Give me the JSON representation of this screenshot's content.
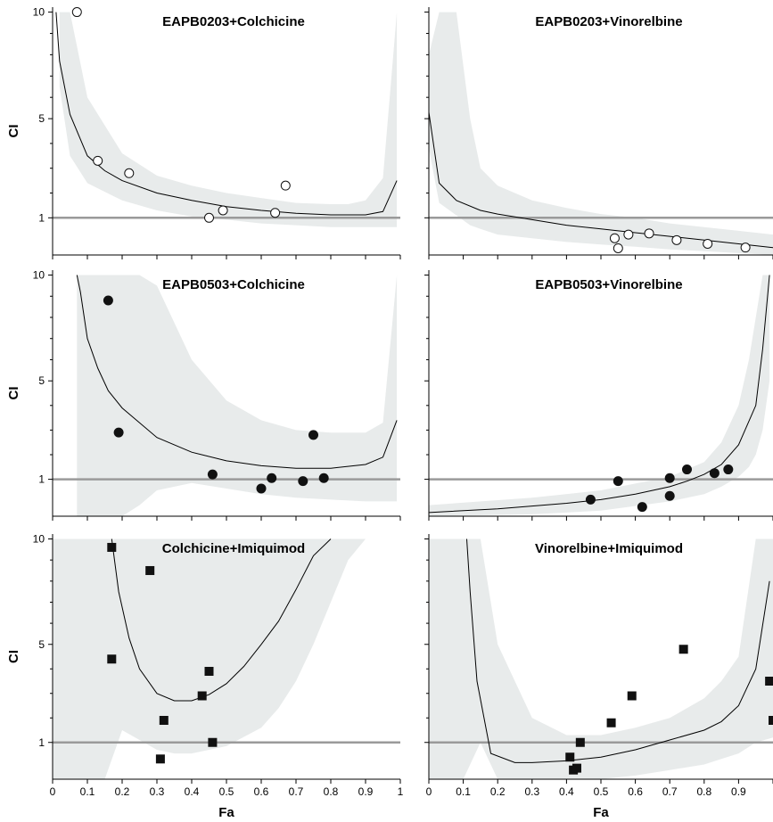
{
  "figure": {
    "x_axis_label": "Fa",
    "y_axis_label": "CI"
  },
  "chart_data": [
    {
      "type": "scatter",
      "title": "EAPB0203+Colchicine",
      "xlabel": "",
      "ylabel": "CI",
      "xlim": [
        0,
        1
      ],
      "ylim": [
        0,
        10
      ],
      "y_ticks": [
        "1",
        "5",
        "10"
      ],
      "x_ticks": [],
      "marker": "open-circle",
      "reference_line": 1,
      "points": [
        {
          "x": 0.07,
          "y": 10.0
        },
        {
          "x": 0.13,
          "y": 3.3
        },
        {
          "x": 0.22,
          "y": 2.8
        },
        {
          "x": 0.45,
          "y": 1.0
        },
        {
          "x": 0.49,
          "y": 1.3
        },
        {
          "x": 0.64,
          "y": 1.2
        },
        {
          "x": 0.67,
          "y": 2.3
        }
      ],
      "curve": {
        "x": [
          0.01,
          0.02,
          0.05,
          0.1,
          0.15,
          0.2,
          0.3,
          0.4,
          0.5,
          0.6,
          0.7,
          0.8,
          0.9,
          0.95,
          0.99
        ],
        "y": [
          10,
          7.7,
          5.2,
          3.5,
          2.9,
          2.5,
          2.0,
          1.7,
          1.45,
          1.3,
          1.18,
          1.12,
          1.12,
          1.25,
          2.5
        ]
      },
      "band": {
        "x": [
          0.02,
          0.05,
          0.1,
          0.2,
          0.3,
          0.4,
          0.5,
          0.6,
          0.7,
          0.8,
          0.85,
          0.9,
          0.95,
          0.99
        ],
        "upper": [
          10,
          10,
          6,
          3.6,
          2.7,
          2.3,
          2.0,
          1.8,
          1.6,
          1.55,
          1.55,
          1.7,
          2.6,
          10
        ],
        "lower": [
          6.5,
          3.5,
          2.4,
          1.7,
          1.3,
          1.05,
          0.95,
          0.85,
          0.8,
          0.75,
          0.75,
          0.75,
          0.75,
          0.75
        ]
      }
    },
    {
      "type": "scatter",
      "title": "EAPB0203+Vinorelbine",
      "xlabel": "",
      "ylabel": "",
      "xlim": [
        0,
        1
      ],
      "ylim": [
        0,
        10
      ],
      "y_ticks": [],
      "x_ticks": [],
      "marker": "open-circle",
      "reference_line": 1,
      "points": [
        {
          "x": 0.54,
          "y": 0.45
        },
        {
          "x": 0.55,
          "y": 0.18
        },
        {
          "x": 0.58,
          "y": 0.55
        },
        {
          "x": 0.64,
          "y": 0.58
        },
        {
          "x": 0.72,
          "y": 0.4
        },
        {
          "x": 0.81,
          "y": 0.3
        },
        {
          "x": 0.92,
          "y": 0.2
        }
      ],
      "curve": {
        "x": [
          0.0,
          0.03,
          0.08,
          0.15,
          0.2,
          0.3,
          0.4,
          0.5,
          0.6,
          0.7,
          0.8,
          0.9,
          1.0
        ],
        "y": [
          5.3,
          2.4,
          1.7,
          1.3,
          1.15,
          0.95,
          0.8,
          0.7,
          0.6,
          0.5,
          0.4,
          0.3,
          0.2
        ]
      },
      "band": {
        "x": [
          0.0,
          0.03,
          0.08,
          0.12,
          0.15,
          0.2,
          0.3,
          0.4,
          0.5,
          0.6,
          0.7,
          0.8,
          0.9,
          1.0
        ],
        "upper": [
          8,
          10,
          10,
          5,
          3.0,
          2.3,
          1.7,
          1.4,
          1.15,
          1.0,
          0.85,
          0.75,
          0.65,
          0.55
        ],
        "lower": [
          3.8,
          1.6,
          1.1,
          0.8,
          0.7,
          0.55,
          0.45,
          0.35,
          0.28,
          0.22,
          0.15,
          0.1,
          0.05,
          0.0
        ]
      }
    },
    {
      "type": "scatter",
      "title": "EAPB0503+Colchicine",
      "xlabel": "",
      "ylabel": "CI",
      "xlim": [
        0,
        1
      ],
      "ylim": [
        0,
        10
      ],
      "y_ticks": [
        "1",
        "5",
        "10"
      ],
      "x_ticks": [],
      "marker": "filled-circle",
      "reference_line": 1,
      "points": [
        {
          "x": 0.16,
          "y": 8.8
        },
        {
          "x": 0.19,
          "y": 2.9
        },
        {
          "x": 0.46,
          "y": 1.2
        },
        {
          "x": 0.6,
          "y": 0.75
        },
        {
          "x": 0.63,
          "y": 1.05
        },
        {
          "x": 0.72,
          "y": 0.95
        },
        {
          "x": 0.75,
          "y": 2.8
        },
        {
          "x": 0.78,
          "y": 1.05
        }
      ],
      "curve": {
        "x": [
          0.07,
          0.08,
          0.1,
          0.13,
          0.16,
          0.2,
          0.3,
          0.4,
          0.5,
          0.6,
          0.7,
          0.8,
          0.9,
          0.95,
          0.99
        ],
        "y": [
          10,
          9.2,
          7.0,
          5.6,
          4.6,
          3.9,
          2.7,
          2.1,
          1.75,
          1.55,
          1.45,
          1.45,
          1.6,
          1.9,
          3.4
        ]
      },
      "band": {
        "x": [
          0.07,
          0.15,
          0.2,
          0.25,
          0.3,
          0.4,
          0.5,
          0.6,
          0.7,
          0.8,
          0.9,
          0.95,
          0.99
        ],
        "upper": [
          10,
          10,
          10,
          10,
          9.5,
          6.0,
          4.2,
          3.4,
          3.0,
          2.9,
          2.9,
          3.3,
          10
        ],
        "lower": [
          0,
          0,
          0,
          0.3,
          0.7,
          0.9,
          0.75,
          0.6,
          0.5,
          0.45,
          0.4,
          0.4,
          0.4
        ]
      }
    },
    {
      "type": "scatter",
      "title": "EAPB0503+Vinorelbine",
      "xlabel": "",
      "ylabel": "",
      "xlim": [
        0,
        1
      ],
      "ylim": [
        0,
        10
      ],
      "y_ticks": [],
      "x_ticks": [],
      "marker": "filled-circle",
      "reference_line": 1,
      "points": [
        {
          "x": 0.47,
          "y": 0.45
        },
        {
          "x": 0.55,
          "y": 0.95
        },
        {
          "x": 0.62,
          "y": 0.25
        },
        {
          "x": 0.7,
          "y": 0.55
        },
        {
          "x": 0.7,
          "y": 1.05
        },
        {
          "x": 0.75,
          "y": 1.4
        },
        {
          "x": 0.83,
          "y": 1.25
        },
        {
          "x": 0.87,
          "y": 1.4
        }
      ],
      "curve": {
        "x": [
          0.0,
          0.2,
          0.4,
          0.5,
          0.6,
          0.7,
          0.75,
          0.8,
          0.85,
          0.9,
          0.95,
          0.97,
          0.99
        ],
        "y": [
          0.1,
          0.2,
          0.35,
          0.45,
          0.6,
          0.8,
          0.95,
          1.2,
          1.6,
          2.4,
          4.0,
          6.5,
          10
        ]
      },
      "band": {
        "x": [
          0.0,
          0.3,
          0.5,
          0.7,
          0.8,
          0.85,
          0.9,
          0.93,
          0.95,
          0.97,
          0.99
        ],
        "upper": [
          0.3,
          0.5,
          0.7,
          1.1,
          1.7,
          2.5,
          4.0,
          6.0,
          8.0,
          10,
          10
        ],
        "lower": [
          0.0,
          0.05,
          0.15,
          0.4,
          0.6,
          0.8,
          1.1,
          1.5,
          2.0,
          3.0,
          5.0
        ]
      }
    },
    {
      "type": "scatter",
      "title": "Colchicine+Imiquimod",
      "xlabel": "Fa",
      "ylabel": "CI",
      "xlim": [
        0,
        1
      ],
      "ylim": [
        0,
        10
      ],
      "y_ticks": [
        "1",
        "5",
        "10"
      ],
      "x_ticks": [
        "0",
        "0.1",
        "0.2",
        "0.3",
        "0.4",
        "0.5",
        "0.6",
        "0.7",
        "0.8",
        "0.9",
        "1"
      ],
      "marker": "filled-square",
      "reference_line": 1,
      "points": [
        {
          "x": 0.17,
          "y": 9.6
        },
        {
          "x": 0.17,
          "y": 4.4
        },
        {
          "x": 0.28,
          "y": 8.5
        },
        {
          "x": 0.31,
          "y": 0.55
        },
        {
          "x": 0.32,
          "y": 1.9
        },
        {
          "x": 0.43,
          "y": 2.9
        },
        {
          "x": 0.45,
          "y": 3.9
        },
        {
          "x": 0.46,
          "y": 1.0
        }
      ],
      "curve": {
        "x": [
          0.17,
          0.19,
          0.22,
          0.25,
          0.3,
          0.35,
          0.4,
          0.45,
          0.5,
          0.55,
          0.6,
          0.65,
          0.7,
          0.75,
          0.8
        ],
        "y": [
          10,
          7.5,
          5.3,
          4.0,
          3.0,
          2.7,
          2.7,
          2.95,
          3.4,
          4.1,
          5.0,
          6.1,
          7.6,
          9.2,
          10
        ]
      },
      "band": {
        "x": [
          0.0,
          0.15,
          0.2,
          0.25,
          0.3,
          0.35,
          0.4,
          0.5,
          0.6,
          0.65,
          0.7,
          0.75,
          0.8,
          0.85,
          0.9,
          1.0
        ],
        "upper": [
          10,
          10,
          10,
          10,
          10,
          10,
          10,
          10,
          10,
          10,
          10,
          10,
          10,
          10,
          10,
          10
        ],
        "lower": [
          0,
          0,
          1.5,
          1.1,
          0.8,
          0.7,
          0.7,
          0.9,
          1.6,
          2.4,
          3.5,
          5.0,
          7.0,
          9.0,
          10,
          10
        ]
      }
    },
    {
      "type": "scatter",
      "title": "Vinorelbine+Imiquimod",
      "xlabel": "Fa",
      "ylabel": "",
      "xlim": [
        0,
        1
      ],
      "ylim": [
        0,
        10
      ],
      "y_ticks": [],
      "x_ticks": [
        "0",
        "0.1",
        "0.2",
        "0.3",
        "0.4",
        "0.5",
        "0.6",
        "0.7",
        "0.8",
        "0.9"
      ],
      "marker": "filled-square",
      "reference_line": 1,
      "points": [
        {
          "x": 0.41,
          "y": 0.6
        },
        {
          "x": 0.42,
          "y": 0.25
        },
        {
          "x": 0.43,
          "y": 0.3
        },
        {
          "x": 0.44,
          "y": 1.0
        },
        {
          "x": 0.53,
          "y": 1.8
        },
        {
          "x": 0.59,
          "y": 2.9
        },
        {
          "x": 0.74,
          "y": 4.8
        },
        {
          "x": 0.99,
          "y": 3.5
        },
        {
          "x": 1.0,
          "y": 1.9
        }
      ],
      "curve": {
        "x": [
          0.11,
          0.12,
          0.14,
          0.18,
          0.25,
          0.3,
          0.4,
          0.5,
          0.6,
          0.7,
          0.8,
          0.85,
          0.9,
          0.95,
          0.99
        ],
        "y": [
          10,
          7.5,
          3.5,
          0.7,
          0.45,
          0.45,
          0.5,
          0.6,
          0.8,
          1.1,
          1.5,
          1.85,
          2.5,
          4.0,
          8.0
        ]
      },
      "band": {
        "x": [
          0.0,
          0.1,
          0.15,
          0.2,
          0.3,
          0.4,
          0.5,
          0.6,
          0.7,
          0.8,
          0.85,
          0.9,
          0.95,
          1.0
        ],
        "upper": [
          10,
          10,
          10,
          5.0,
          2.0,
          1.3,
          1.3,
          1.6,
          2.0,
          2.8,
          3.5,
          4.5,
          10,
          10
        ],
        "lower": [
          0,
          0,
          1.0,
          0.0,
          0.0,
          0.0,
          0.0,
          0.1,
          0.25,
          0.4,
          0.55,
          0.7,
          1.0,
          1.2
        ]
      }
    }
  ]
}
